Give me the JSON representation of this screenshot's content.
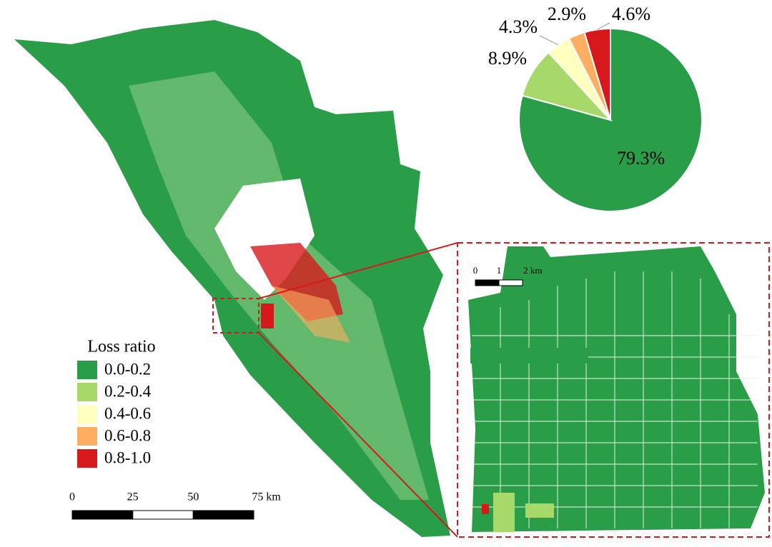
{
  "chart_data": {
    "type": "pie",
    "legend_title": "Loss ratio",
    "categories": [
      "0.0-0.2",
      "0.2-0.4",
      "0.4-0.6",
      "0.6-0.8",
      "0.8-1.0"
    ],
    "values": [
      79.3,
      8.9,
      4.3,
      2.9,
      4.6
    ],
    "value_labels": [
      "79.3%",
      "8.9%",
      "4.3%",
      "2.9%",
      "4.6%"
    ],
    "colors": [
      "#2a9d48",
      "#a6d96a",
      "#ffffbf",
      "#fdae61",
      "#d7191c"
    ]
  },
  "scale_bar": {
    "ticks": [
      0,
      25,
      50,
      {
        "value": 75,
        "label": "75 km"
      }
    ]
  },
  "inset_scale_bar": {
    "ticks": [
      0,
      1,
      {
        "value": 2,
        "label": "2 km"
      }
    ]
  }
}
